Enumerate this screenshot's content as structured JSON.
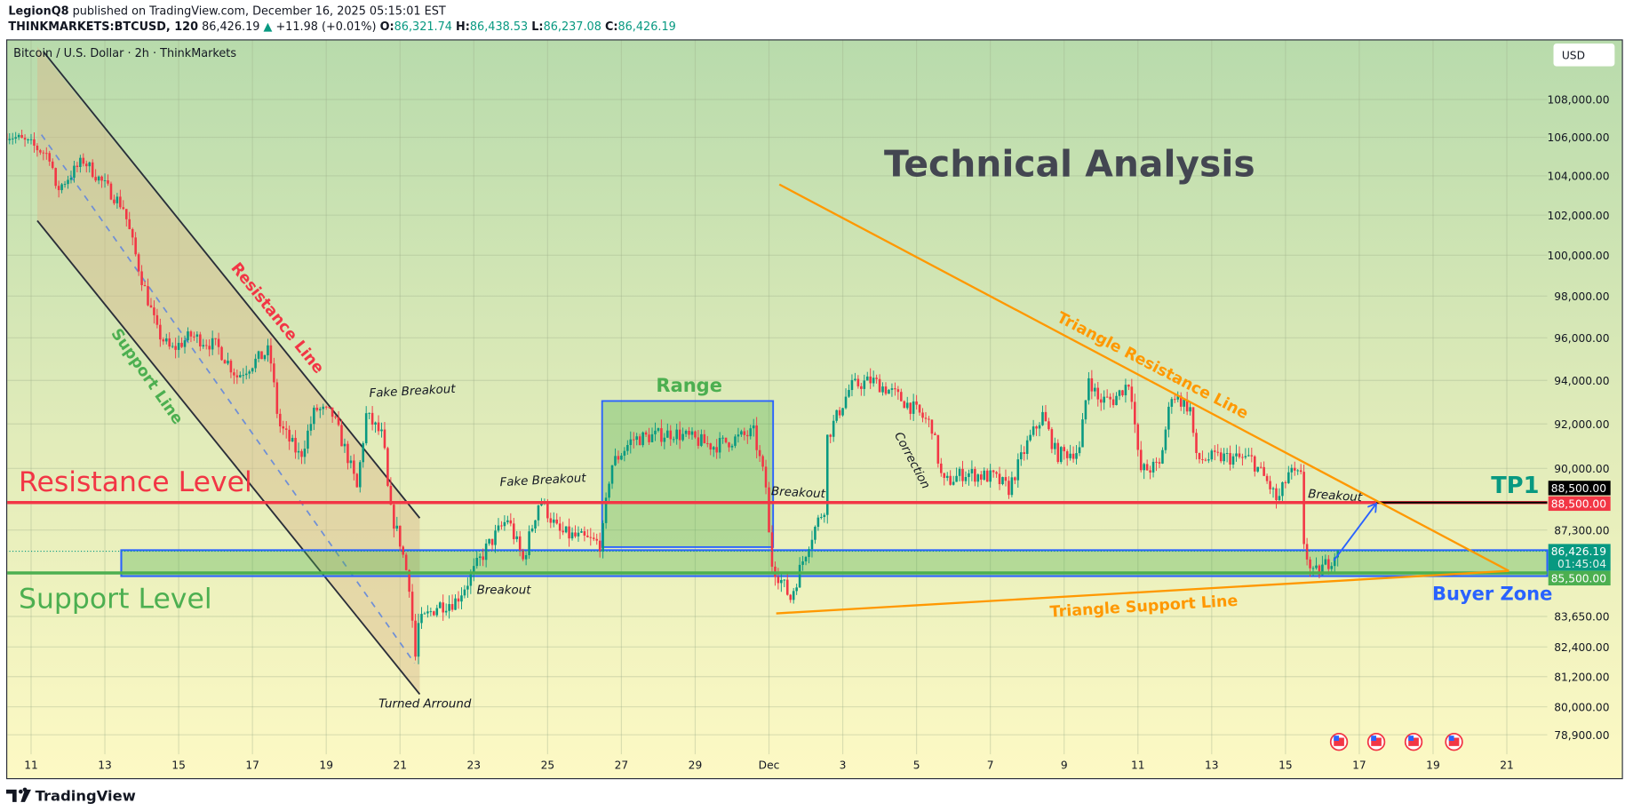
{
  "header": {
    "author": "LegionQ8",
    "published_text": "published on TradingView.com, December 16, 2025 05:15:01 EST",
    "symbol": "THINKMARKETS:BTCUSD, 120",
    "last_price": "86,426.19",
    "change": "+11.98 (+0.01%)",
    "o_label": "O:",
    "o_value": "86,321.74",
    "h_label": "H:",
    "h_value": "86,438.53",
    "l_label": "L:",
    "l_value": "86,237.08",
    "c_label": "C:",
    "c_value": "86,426.19"
  },
  "pane_title": "Bitcoin / U.S. Dollar · 2h · ThinkMarkets",
  "currency_button": "USD",
  "footer_logo": "TradingView",
  "colors": {
    "up": "#089981",
    "down": "#f23645",
    "resistance": "#f23645",
    "support": "#4caf50",
    "triangle": "#ff9800",
    "zone_border": "#2962ff",
    "tp1": "#089981",
    "bg_top": "#b8dbac",
    "bg_bottom": "#fdf9c4"
  },
  "chart_data": {
    "type": "candlestick",
    "symbol": "BTCUSD",
    "timeframe": "2h",
    "y_scale": "log",
    "ylim": [
      78500,
      110000
    ],
    "grid": true,
    "y_ticks": [
      "108,000.00",
      "106,000.00",
      "104,000.00",
      "102,000.00",
      "100,000.00",
      "98,000.00",
      "96,000.00",
      "94,000.00",
      "92,000.00",
      "90,000.00",
      "87,300.00",
      "83,650.00",
      "82,400.00",
      "81,200.00",
      "80,000.00",
      "78,900.00"
    ],
    "y_tick_values": [
      108000,
      106000,
      104000,
      102000,
      100000,
      98000,
      96000,
      94000,
      92000,
      90000,
      87300,
      83650,
      82400,
      81200,
      80000,
      78900
    ],
    "x_ticks": [
      "11",
      "13",
      "15",
      "17",
      "19",
      "21",
      "23",
      "25",
      "27",
      "29",
      "Dec",
      "3",
      "5",
      "7",
      "9",
      "11",
      "13",
      "15",
      "17",
      "19",
      "21"
    ],
    "x_tick_dates": [
      "2025-11-11",
      "2025-11-13",
      "2025-11-15",
      "2025-11-17",
      "2025-11-19",
      "2025-11-21",
      "2025-11-23",
      "2025-11-25",
      "2025-11-27",
      "2025-11-29",
      "2025-12-01",
      "2025-12-03",
      "2025-12-05",
      "2025-12-07",
      "2025-12-09",
      "2025-12-11",
      "2025-12-13",
      "2025-12-15",
      "2025-12-17",
      "2025-12-19",
      "2025-12-21"
    ],
    "approx_price_path": [
      [
        "2025-11-10 08:00",
        106200
      ],
      [
        "2025-11-11 00:00",
        105600
      ],
      [
        "2025-11-11 13:00",
        105000
      ],
      [
        "2025-11-11 16:00",
        103200
      ],
      [
        "2025-11-12 10:00",
        104800
      ],
      [
        "2025-11-13 00:00",
        103500
      ],
      [
        "2025-11-13 12:00",
        102400
      ],
      [
        "2025-11-13 23:00",
        99100
      ],
      [
        "2025-11-14 10:00",
        96300
      ],
      [
        "2025-11-14 19:00",
        95400
      ],
      [
        "2025-11-15 08:00",
        96100
      ],
      [
        "2025-11-16 01:00",
        95600
      ],
      [
        "2025-11-16 14:00",
        94200
      ],
      [
        "2025-11-17 00:00",
        94800
      ],
      [
        "2025-11-17 11:00",
        95400
      ],
      [
        "2025-11-17 17:00",
        92000
      ],
      [
        "2025-11-18 07:00",
        90500
      ],
      [
        "2025-11-18 17:00",
        92700
      ],
      [
        "2025-11-19 04:00",
        92400
      ],
      [
        "2025-11-19 14:00",
        90500
      ],
      [
        "2025-11-19 20:00",
        89100
      ],
      [
        "2025-11-20 02:00",
        92400
      ],
      [
        "2025-11-20 13:00",
        91400
      ],
      [
        "2025-11-20 17:00",
        88300
      ],
      [
        "2025-11-21 00:00",
        86800
      ],
      [
        "2025-11-21 06:00",
        85000
      ],
      [
        "2025-11-21 10:00",
        82000
      ],
      [
        "2025-11-21 12:00",
        83300
      ],
      [
        "2025-11-22 00:00",
        84100
      ],
      [
        "2025-11-22 12:00",
        84300
      ],
      [
        "2025-11-22 22:00",
        85300
      ],
      [
        "2025-11-23 08:00",
        86500
      ],
      [
        "2025-11-23 22:00",
        87800
      ],
      [
        "2025-11-24 08:00",
        86000
      ],
      [
        "2025-11-24 19:00",
        88700
      ],
      [
        "2025-11-25 07:00",
        87200
      ],
      [
        "2025-11-26 11:00",
        86700
      ],
      [
        "2025-11-26 17:00",
        90100
      ],
      [
        "2025-11-27 07:00",
        91300
      ],
      [
        "2025-11-28 10:00",
        91600
      ],
      [
        "2025-11-29 12:00",
        91000
      ],
      [
        "2025-11-30 14:00",
        91600
      ],
      [
        "2025-11-30 22:00",
        89200
      ],
      [
        "2025-12-01 01:00",
        86000
      ],
      [
        "2025-12-01 14:00",
        84400
      ],
      [
        "2025-12-02 02:00",
        86800
      ],
      [
        "2025-12-02 12:00",
        88300
      ],
      [
        "2025-12-02 14:00",
        91400
      ],
      [
        "2025-12-03 05:00",
        93700
      ],
      [
        "2025-12-03 19:00",
        94000
      ],
      [
        "2025-12-04 07:00",
        93500
      ],
      [
        "2025-12-04 22:00",
        92700
      ],
      [
        "2025-12-05 10:00",
        91900
      ],
      [
        "2025-12-05 17:00",
        89300
      ],
      [
        "2025-12-06 07:00",
        89800
      ],
      [
        "2025-12-07 02:00",
        89600
      ],
      [
        "2025-12-07 12:00",
        89100
      ],
      [
        "2025-12-08 00:00",
        91100
      ],
      [
        "2025-12-08 10:00",
        92400
      ],
      [
        "2025-12-08 19:00",
        90600
      ],
      [
        "2025-12-09 10:00",
        90800
      ],
      [
        "2025-12-09 16:00",
        94200
      ],
      [
        "2025-12-09 22:00",
        93100
      ],
      [
        "2025-12-10 08:00",
        93100
      ],
      [
        "2025-12-10 19:00",
        94000
      ],
      [
        "2025-12-11 01:00",
        89900
      ],
      [
        "2025-12-11 14:00",
        90100
      ],
      [
        "2025-12-11 22:00",
        93400
      ],
      [
        "2025-12-12 10:00",
        92700
      ],
      [
        "2025-12-12 14:00",
        90400
      ],
      [
        "2025-12-13 07:00",
        90500
      ],
      [
        "2025-12-14 02:00",
        90400
      ],
      [
        "2025-12-14 13:00",
        89300
      ],
      [
        "2025-12-14 19:00",
        88500
      ],
      [
        "2025-12-15 02:00",
        89800
      ],
      [
        "2025-12-15 10:00",
        89600
      ],
      [
        "2025-12-15 12:00",
        86800
      ],
      [
        "2025-12-15 17:00",
        85300
      ],
      [
        "2025-12-16 02:00",
        85800
      ],
      [
        "2025-12-16 10:00",
        86426.19
      ]
    ],
    "levels": {
      "resistance_level": {
        "label": "Resistance Level",
        "price": 88500
      },
      "support_level": {
        "label": "Support Level",
        "price": 85500
      },
      "tp1": {
        "label": "TP1",
        "price": 88500
      }
    },
    "price_labels": {
      "tp1_price": "88,500.00",
      "resistance_price": "88,500.00",
      "current_price": "86,426.19",
      "countdown": "01:45:04",
      "support_price": "85,500.00"
    },
    "annotations": {
      "title": "Technical Analysis",
      "resistance_line": "Resistance Line",
      "support_line": "Support Line",
      "range": "Range",
      "triangle_resistance": "Triangle Resistance Line",
      "triangle_support": "Triangle Support Line",
      "buyer_zone": "Buyer Zone",
      "fake_breakout_1": "Fake Breakout",
      "fake_breakout_2": "Fake Breakout",
      "breakout_1": "Breakout",
      "turned_around": "Turned Arround",
      "breakout_2": "Breakout",
      "correction": "Correction",
      "breakout_3": "Breakout"
    },
    "event_icons": [
      "us-flag-icon",
      "us-flag-icon",
      "us-flag-icon",
      "us-flag-icon"
    ]
  }
}
